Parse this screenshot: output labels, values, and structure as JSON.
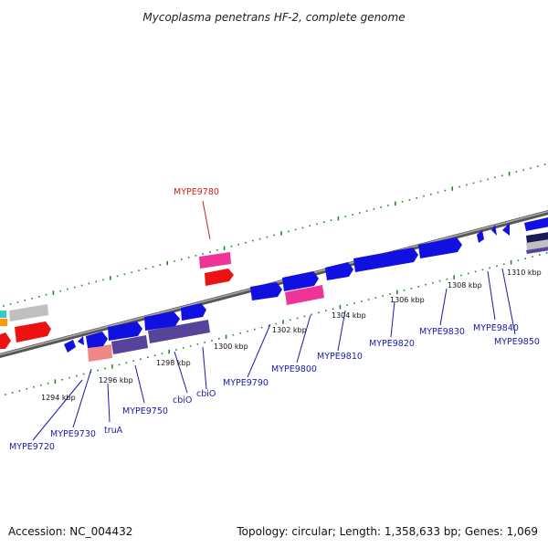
{
  "title": "Mycoplasma penetrans HF-2, complete genome",
  "footer": {
    "accession": "Accession: NC_004432",
    "summary": "Topology: circular; Length: 1,358,633 bp; Genes: 1,069"
  },
  "colors": {
    "forward_gene": "#1010e0",
    "reverse_gene": "#ee1111",
    "rna_pink": "#ee3399",
    "salmon": "#ee8888",
    "purple": "#554499",
    "gray": "#c0c0c0",
    "orange": "#ff9900",
    "cyan": "#33cccc",
    "tick_green": "#228822",
    "label_blue": "#1a1aaa",
    "label_red": "#cc2222",
    "backbone": "#777777"
  },
  "scale_labels": [
    {
      "text": "1294 kbp",
      "kbp": 1294
    },
    {
      "text": "1296 kbp",
      "kbp": 1296
    },
    {
      "text": "1298 kbp",
      "kbp": 1298
    },
    {
      "text": "1300 kbp",
      "kbp": 1300
    },
    {
      "text": "1302 kbp",
      "kbp": 1302
    },
    {
      "text": "1304 kbp",
      "kbp": 1304
    },
    {
      "text": "1306 kbp",
      "kbp": 1306
    },
    {
      "text": "1308 kbp",
      "kbp": 1308
    },
    {
      "text": "1310 kbp",
      "kbp": 1310
    }
  ],
  "gene_labels": [
    {
      "text": "MYPE9720",
      "color": "label_blue"
    },
    {
      "text": "MYPE9730",
      "color": "label_blue"
    },
    {
      "text": "truA",
      "color": "label_blue"
    },
    {
      "text": "MYPE9750",
      "color": "label_blue"
    },
    {
      "text": "cbiO",
      "color": "label_blue"
    },
    {
      "text": "cbiO",
      "color": "label_blue"
    },
    {
      "text": "MYPE9780",
      "color": "label_red"
    },
    {
      "text": "MYPE9790",
      "color": "label_blue"
    },
    {
      "text": "MYPE9800",
      "color": "label_blue"
    },
    {
      "text": "MYPE9810",
      "color": "label_blue"
    },
    {
      "text": "MYPE9820",
      "color": "label_blue"
    },
    {
      "text": "MYPE9830",
      "color": "label_blue"
    },
    {
      "text": "MYPE9840",
      "color": "label_blue"
    },
    {
      "text": "MYPE9850",
      "color": "label_blue"
    }
  ]
}
